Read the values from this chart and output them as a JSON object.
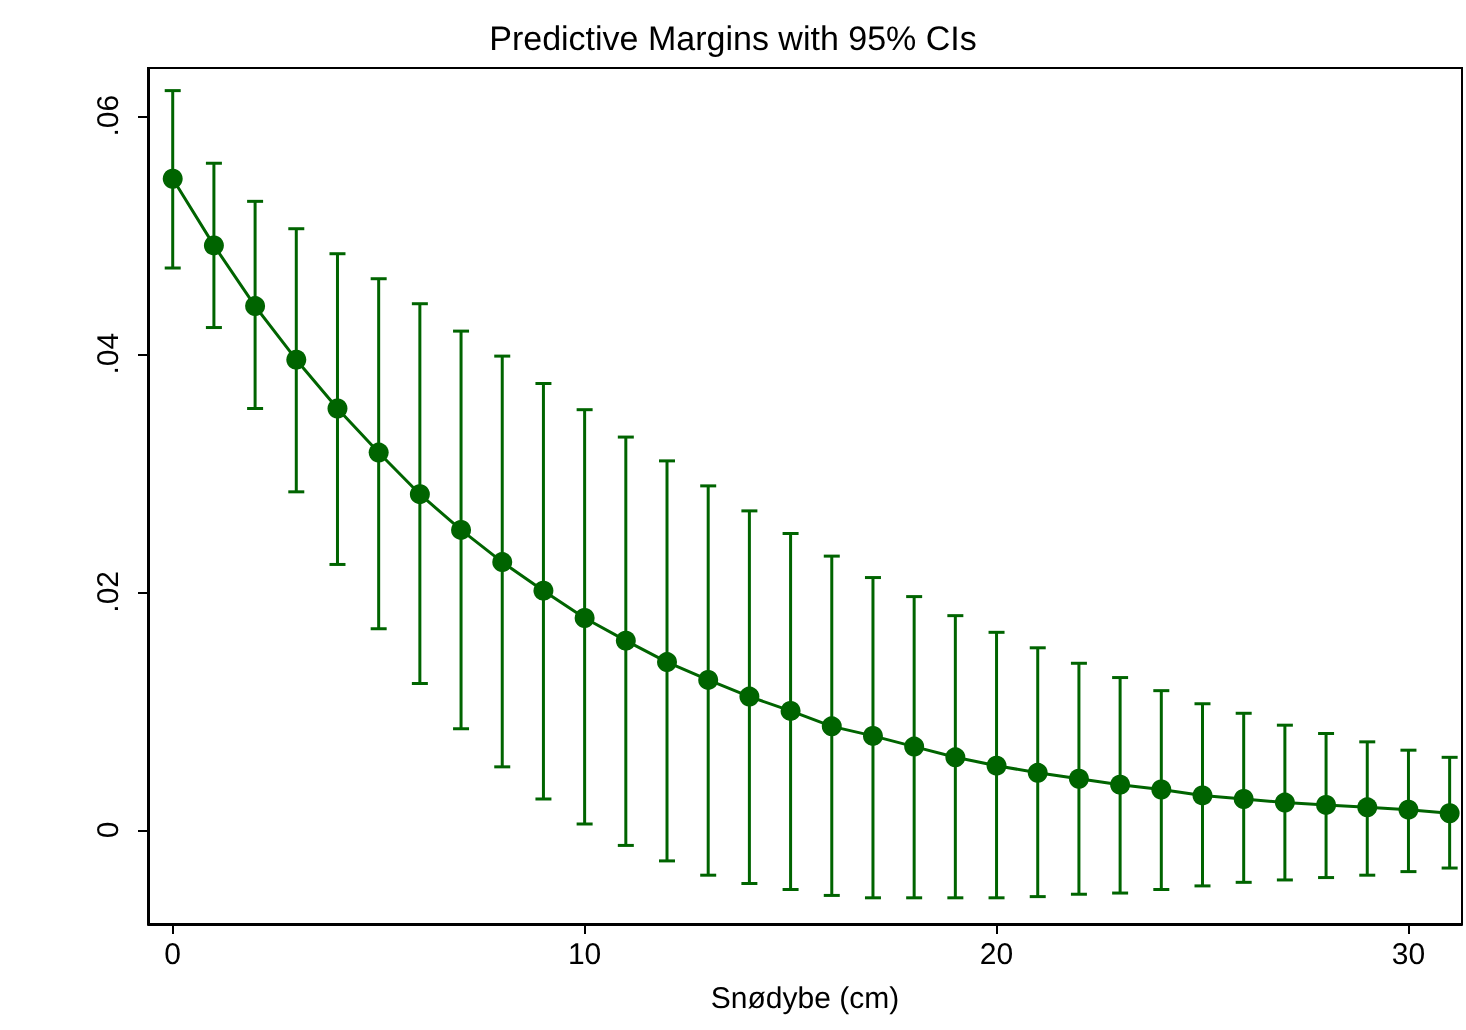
{
  "chart_data": {
    "type": "line",
    "title": "Predictive Margins with 95% CIs",
    "xlabel": "Snødybe (cm)",
    "x": [
      0,
      1,
      2,
      3,
      4,
      5,
      6,
      7,
      8,
      9,
      10,
      11,
      12,
      13,
      14,
      15,
      16,
      17,
      18,
      19,
      20,
      21,
      22,
      23,
      24,
      25,
      26,
      27,
      28,
      29,
      30,
      31
    ],
    "series": [
      {
        "color": "#006400",
        "values": [
          0.0547,
          0.0491,
          0.044,
          0.0395,
          0.0354,
          0.0317,
          0.0282,
          0.0252,
          0.0225,
          0.0201,
          0.0178,
          0.0159,
          0.0141,
          0.0126,
          0.0112,
          0.01,
          0.0087,
          0.0079,
          0.007,
          0.0061,
          0.0054,
          0.0048,
          0.0043,
          0.0038,
          0.0034,
          0.0029,
          0.0026,
          0.0023,
          0.0021,
          0.0019,
          0.0017,
          0.0014
        ],
        "errors": [
          [
            0.0472,
            0.0621
          ],
          [
            0.0422,
            0.056
          ],
          [
            0.0354,
            0.0528
          ],
          [
            0.0284,
            0.0505
          ],
          [
            0.0223,
            0.0484
          ],
          [
            0.0169,
            0.0463
          ],
          [
            0.0123,
            0.0442
          ],
          [
            0.0085,
            0.0419
          ],
          [
            0.0053,
            0.0398
          ],
          [
            0.0026,
            0.0375
          ],
          [
            0.0005,
            0.0353
          ],
          [
            -0.0013,
            0.033
          ],
          [
            -0.0026,
            0.031
          ],
          [
            -0.0038,
            0.0289
          ],
          [
            -0.0045,
            0.0268
          ],
          [
            -0.005,
            0.0249
          ],
          [
            -0.0055,
            0.023
          ],
          [
            -0.0057,
            0.0212
          ],
          [
            -0.0057,
            0.0196
          ],
          [
            -0.0057,
            0.018
          ],
          [
            -0.0057,
            0.0166
          ],
          [
            -0.0056,
            0.0153
          ],
          [
            -0.0054,
            0.014
          ],
          [
            -0.0053,
            0.0128
          ],
          [
            -0.005,
            0.0117
          ],
          [
            -0.0047,
            0.0106
          ],
          [
            -0.0044,
            0.0098
          ],
          [
            -0.0042,
            0.0088
          ],
          [
            -0.004,
            0.0081
          ],
          [
            -0.0038,
            0.0074
          ],
          [
            -0.0035,
            0.0067
          ],
          [
            -0.0032,
            0.0061
          ]
        ]
      }
    ],
    "xlim": [
      -0.6,
      31.3
    ],
    "xticks": [
      0,
      10,
      20,
      30
    ],
    "ylim": [
      -0.0079,
      0.064
    ],
    "yticks": [
      0,
      {
        "value": 0.02,
        "label": ".02"
      },
      {
        "value": 0.04,
        "label": ".04"
      },
      {
        "value": 0.06,
        "label": ".06"
      }
    ],
    "grid": false,
    "marker": "circle",
    "line_style": "solid"
  }
}
